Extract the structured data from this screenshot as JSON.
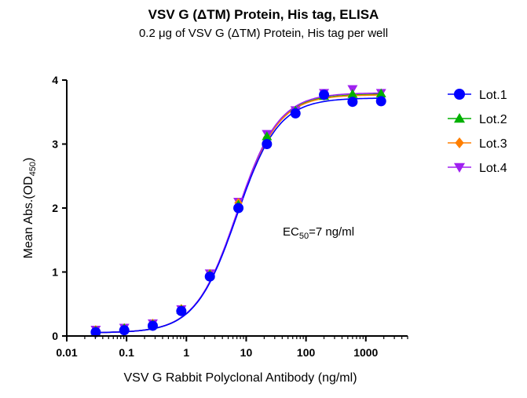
{
  "chart_data": {
    "type": "scatter",
    "title": "VSV G (ΔTM) Protein, His tag, ELISA",
    "subtitle": "0.2 μg of VSV G (ΔTM) Protein, His tag per well",
    "xlabel": "VSV G Rabbit Polyclonal Antibody (ng/ml)",
    "ylabel_main": "Mean Abs.(OD",
    "ylabel_sub": "450",
    "ylabel_end": ")",
    "xscale": "log",
    "xlim": [
      0.01,
      5000
    ],
    "ylim": [
      0,
      4
    ],
    "xticks": [
      {
        "value": 0.01,
        "label": "0.01"
      },
      {
        "value": 0.1,
        "label": "0.1"
      },
      {
        "value": 1,
        "label": "1"
      },
      {
        "value": 10,
        "label": "10"
      },
      {
        "value": 100,
        "label": "100"
      },
      {
        "value": 1000,
        "label": "1000"
      }
    ],
    "yticks": [
      {
        "value": 0,
        "label": "0"
      },
      {
        "value": 1,
        "label": "1"
      },
      {
        "value": 2,
        "label": "2"
      },
      {
        "value": 3,
        "label": "3"
      },
      {
        "value": 4,
        "label": "4"
      }
    ],
    "x": [
      0.0305,
      0.0915,
      0.274,
      0.823,
      2.47,
      7.41,
      22.2,
      66.7,
      200,
      600,
      1800
    ],
    "series": [
      {
        "name": "Lot.1",
        "color": "#0000ff",
        "marker": "circle",
        "values": [
          0.06,
          0.09,
          0.16,
          0.39,
          0.93,
          2.0,
          3.0,
          3.48,
          3.77,
          3.66,
          3.67
        ]
      },
      {
        "name": "Lot.2",
        "color": "#00b000",
        "marker": "triangle-up",
        "values": [
          0.08,
          0.12,
          0.18,
          0.41,
          0.96,
          2.05,
          3.12,
          3.52,
          3.75,
          3.78,
          3.79
        ]
      },
      {
        "name": "Lot.3",
        "color": "#ff7f00",
        "marker": "diamond",
        "values": [
          0.09,
          0.12,
          0.19,
          0.42,
          0.97,
          2.08,
          3.1,
          3.5,
          3.76,
          3.76,
          3.76
        ]
      },
      {
        "name": "Lot.4",
        "color": "#a020f0",
        "marker": "triangle-down",
        "values": [
          0.1,
          0.13,
          0.2,
          0.42,
          0.98,
          2.1,
          3.16,
          3.53,
          3.8,
          3.86,
          3.8
        ]
      }
    ],
    "fit": {
      "model": "4PL",
      "bottom": 0.05,
      "ec50": 7,
      "hill": 1.25,
      "tops": [
        3.72,
        3.78,
        3.77,
        3.8
      ]
    },
    "annotation": {
      "prefix": "EC",
      "sub": "50",
      "suffix": "=7 ng/ml"
    },
    "legend_position": "right",
    "grid": false
  }
}
